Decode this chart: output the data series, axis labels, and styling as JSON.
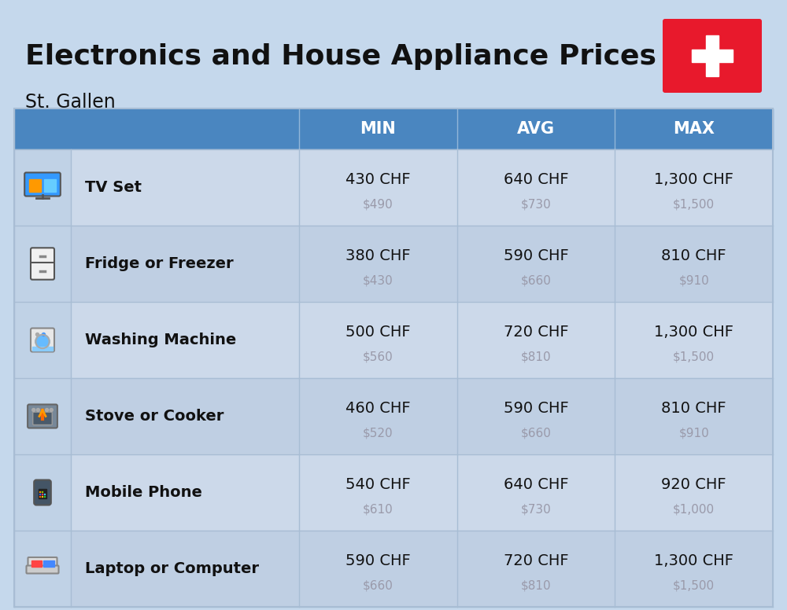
{
  "title": "Electronics and House Appliance Prices",
  "subtitle": "St. Gallen",
  "bg_color": "#c5d8ec",
  "header_color": "#4a86c0",
  "row_light": "#ccd9ea",
  "row_dark": "#bfcfe3",
  "icon_col_color": "#c0d2e6",
  "divider_color": "#a8bdd4",
  "text_color": "#111111",
  "usd_color": "#9a9aaa",
  "col_headers": [
    "MIN",
    "AVG",
    "MAX"
  ],
  "items": [
    {
      "name": "TV Set",
      "min_chf": "430 CHF",
      "min_usd": "$490",
      "avg_chf": "640 CHF",
      "avg_usd": "$730",
      "max_chf": "1,300 CHF",
      "max_usd": "$1,500"
    },
    {
      "name": "Fridge or Freezer",
      "min_chf": "380 CHF",
      "min_usd": "$430",
      "avg_chf": "590 CHF",
      "avg_usd": "$660",
      "max_chf": "810 CHF",
      "max_usd": "$910"
    },
    {
      "name": "Washing Machine",
      "min_chf": "500 CHF",
      "min_usd": "$560",
      "avg_chf": "720 CHF",
      "avg_usd": "$810",
      "max_chf": "1,300 CHF",
      "max_usd": "$1,500"
    },
    {
      "name": "Stove or Cooker",
      "min_chf": "460 CHF",
      "min_usd": "$520",
      "avg_chf": "590 CHF",
      "avg_usd": "$660",
      "max_chf": "810 CHF",
      "max_usd": "$910"
    },
    {
      "name": "Mobile Phone",
      "min_chf": "540 CHF",
      "min_usd": "$610",
      "avg_chf": "640 CHF",
      "avg_usd": "$730",
      "max_chf": "920 CHF",
      "max_usd": "$1,000"
    },
    {
      "name": "Laptop or Computer",
      "min_chf": "590 CHF",
      "min_usd": "$660",
      "avg_chf": "720 CHF",
      "avg_usd": "$810",
      "max_chf": "1,300 CHF",
      "max_usd": "$1,500"
    }
  ],
  "flag_color": "#e8192c",
  "title_fontsize": 26,
  "subtitle_fontsize": 17,
  "header_fontsize": 15,
  "name_fontsize": 14,
  "price_fontsize": 14,
  "usd_fontsize": 11
}
